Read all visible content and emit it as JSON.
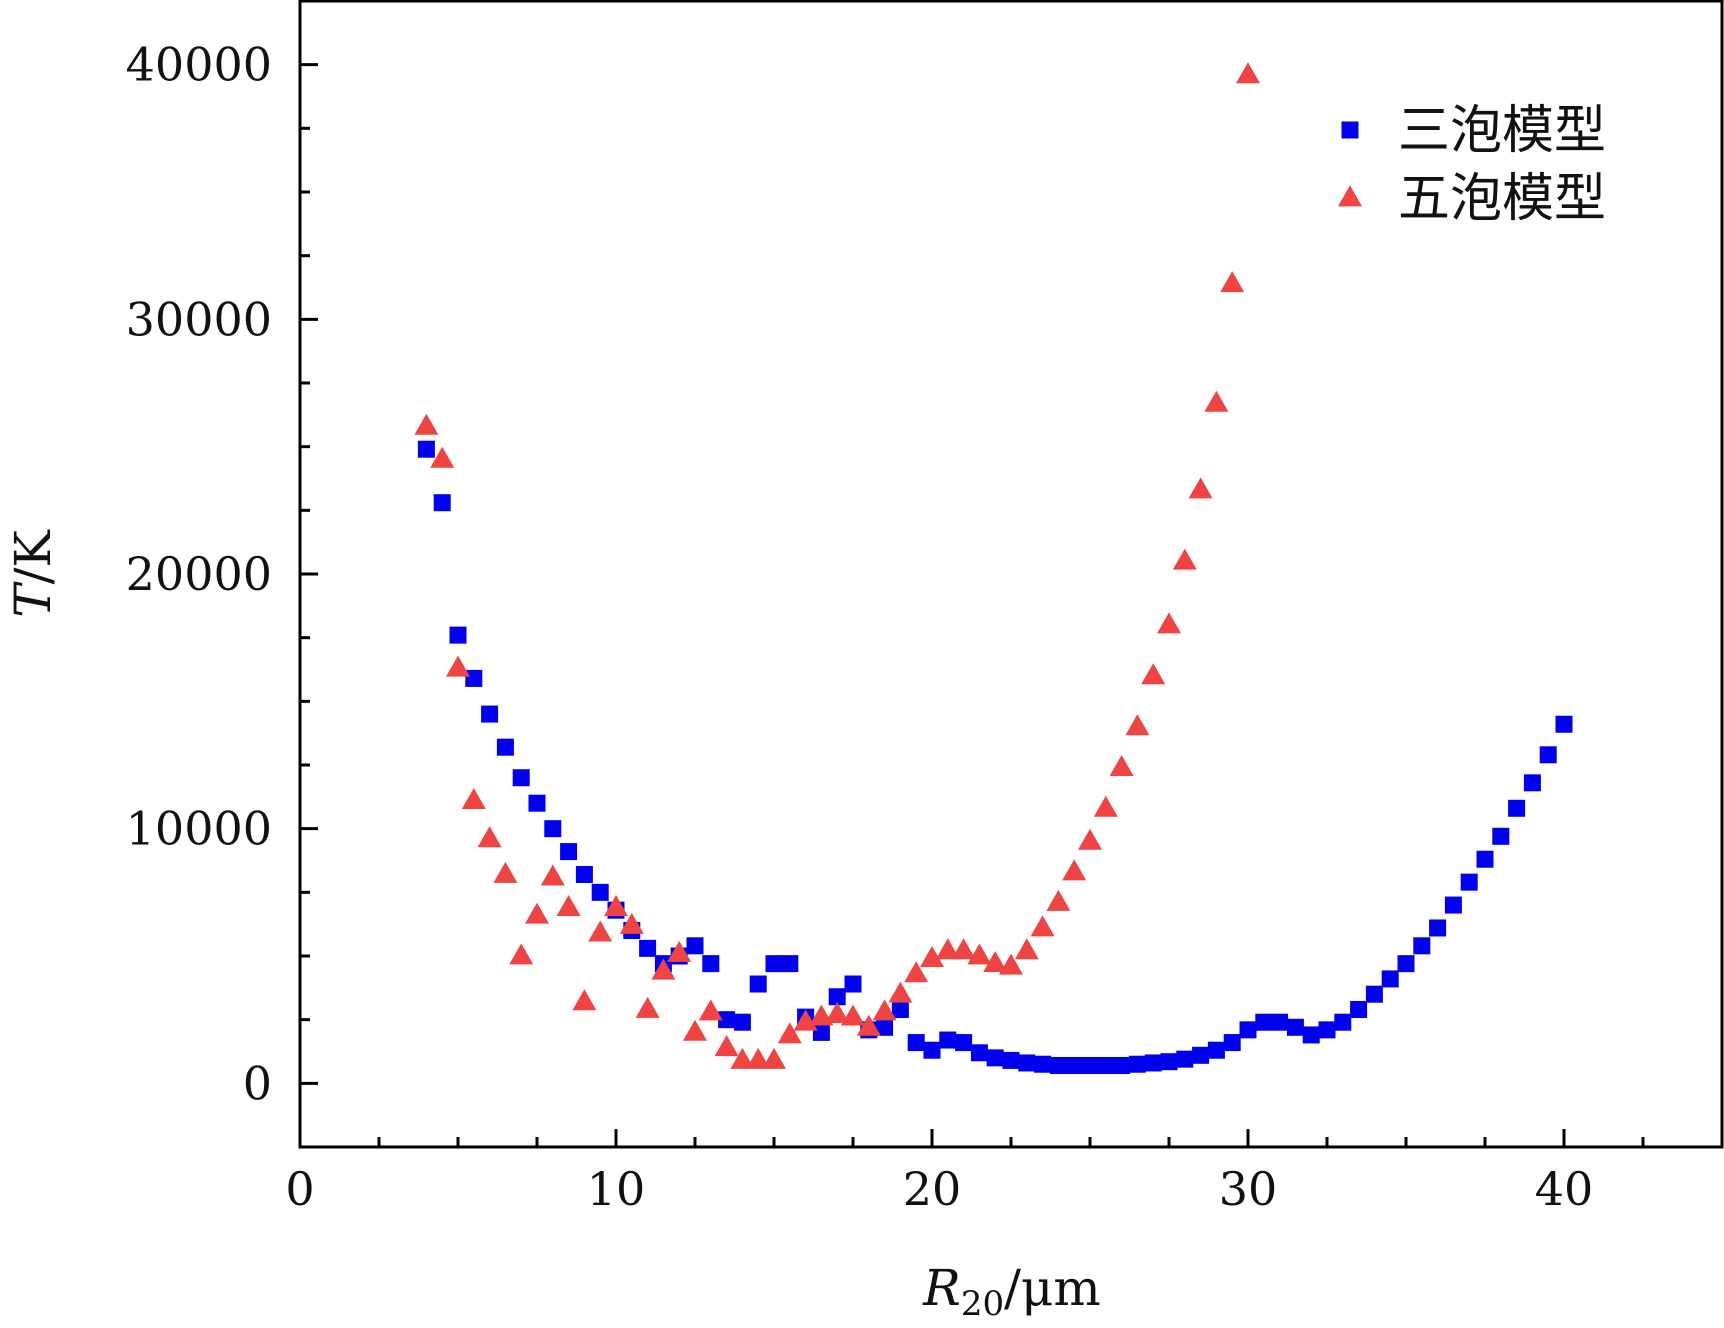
{
  "chart_data": {
    "type": "scatter",
    "xlabel": "R20/μm",
    "ylabel": "T/K",
    "xlim": [
      0,
      45
    ],
    "ylim": [
      -2500,
      42500
    ],
    "x_ticks": [
      0,
      10,
      20,
      30,
      40
    ],
    "x_tick_labels": [
      "0",
      "10",
      "20",
      "30",
      "40"
    ],
    "y_ticks": [
      0,
      10000,
      20000,
      30000,
      40000
    ],
    "y_tick_labels": [
      "0",
      "10000",
      "20000",
      "30000",
      "40000"
    ],
    "grid": false,
    "legend_position": "top-right",
    "series": [
      {
        "name": "三泡模型",
        "marker": "square",
        "color": "#0000ee",
        "x": [
          4,
          4.5,
          5,
          5.5,
          6,
          6.5,
          7,
          7.5,
          8,
          8.5,
          9,
          9.5,
          10,
          10.5,
          11,
          11.5,
          12,
          12.5,
          13,
          13.5,
          14,
          14.5,
          15,
          15.5,
          16,
          16.5,
          17,
          17.5,
          18,
          18.5,
          19,
          19.5,
          20,
          20.5,
          21,
          21.5,
          22,
          22.5,
          23,
          23.5,
          24,
          24.5,
          25,
          25.5,
          26,
          26.5,
          27,
          27.5,
          28,
          28.5,
          29,
          29.5,
          30,
          30.5,
          31,
          31.5,
          32,
          32.5,
          33,
          33.5,
          34,
          34.5,
          35,
          35.5,
          36,
          36.5,
          37,
          37.5,
          38,
          38.5,
          39,
          39.5,
          40
        ],
        "y": [
          24900,
          22800,
          17600,
          15900,
          14500,
          13200,
          12000,
          11000,
          10000,
          9100,
          8200,
          7500,
          6800,
          6000,
          5300,
          4700,
          5000,
          5400,
          4700,
          2500,
          2400,
          3900,
          4700,
          4700,
          2600,
          2000,
          3400,
          3900,
          2100,
          2200,
          2900,
          1600,
          1300,
          1700,
          1600,
          1200,
          1000,
          900,
          800,
          750,
          700,
          700,
          700,
          700,
          700,
          750,
          800,
          850,
          950,
          1100,
          1300,
          1600,
          2100,
          2400,
          2400,
          2200,
          1900,
          2100,
          2400,
          2900,
          3500,
          4100,
          4700,
          5400,
          6100,
          7000,
          7900,
          8800,
          9700,
          10800,
          11800,
          12900,
          14100
        ]
      },
      {
        "name": "五泡模型",
        "marker": "triangle",
        "color": "#ee4444",
        "x": [
          4,
          4.5,
          5,
          5.5,
          6,
          6.5,
          7,
          7.5,
          8,
          8.5,
          9,
          9.5,
          10,
          10.5,
          11,
          11.5,
          12,
          12.5,
          13,
          13.5,
          14,
          14.5,
          15,
          15.5,
          16,
          16.5,
          17,
          17.5,
          18,
          18.5,
          19,
          19.5,
          20,
          20.5,
          21,
          21.5,
          22,
          22.5,
          23,
          23.5,
          24,
          24.5,
          25,
          25.5,
          26,
          26.5,
          27,
          27.5,
          28,
          28.5,
          29,
          29.5,
          30
        ],
        "y": [
          25800,
          24500,
          16300,
          11100,
          9600,
          8200,
          5000,
          6600,
          8100,
          6900,
          3200,
          5900,
          6900,
          6200,
          2900,
          4400,
          5100,
          2000,
          2800,
          1400,
          900,
          900,
          900,
          1900,
          2400,
          2600,
          2700,
          2600,
          2200,
          2800,
          3500,
          4300,
          4900,
          5200,
          5200,
          5000,
          4700,
          4600,
          5200,
          6100,
          7100,
          8300,
          9500,
          10800,
          12400,
          14000,
          16000,
          18000,
          20500,
          23300,
          26700,
          31400,
          39600
        ]
      }
    ]
  }
}
